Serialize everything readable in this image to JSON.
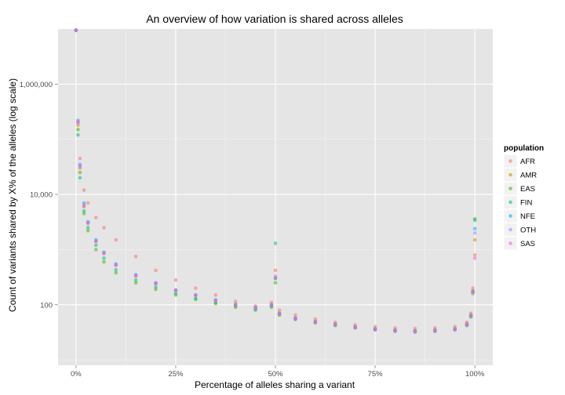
{
  "chart_data": {
    "type": "scatter",
    "title": "An overview of how variation is shared across alleles",
    "xlabel": "Percentage of alleles sharing a variant",
    "ylabel": "Count of variants shared by X% of the alleles (log scale)",
    "x_scale": "linear",
    "y_scale": "log10",
    "xlim": [
      -4.5,
      104.5
    ],
    "ylim": [
      8,
      10000000
    ],
    "x_ticks": [
      0,
      25,
      50,
      75,
      100
    ],
    "x_tick_labels": [
      "0%",
      "25%",
      "50%",
      "75%",
      "100%"
    ],
    "y_ticks": [
      100,
      10000,
      1000000
    ],
    "y_tick_labels": [
      "100",
      "10,000",
      "1,000,000"
    ],
    "grid": true,
    "legend": {
      "title": "population",
      "placement": "right"
    },
    "series": [
      {
        "name": "AFR",
        "color": "#F8766D",
        "x": [
          0,
          0.5,
          1,
          2,
          3,
          5,
          7,
          10,
          15,
          20,
          25,
          30,
          35,
          40,
          45,
          49,
          50,
          51,
          55,
          60,
          65,
          70,
          75,
          80,
          85,
          90,
          95,
          98,
          99,
          99.5,
          100
        ],
        "y": [
          9500000,
          200000,
          45000,
          12000,
          7000,
          3800,
          2500,
          1500,
          750,
          420,
          280,
          200,
          150,
          115,
          95,
          110,
          420,
          80,
          65,
          55,
          48,
          43,
          40,
          38,
          37,
          38,
          40,
          48,
          70,
          200,
          800
        ]
      },
      {
        "name": "AMR",
        "color": "#C49A00",
        "x": [
          0,
          0.5,
          1,
          2,
          3,
          5,
          7,
          10,
          15,
          20,
          25,
          30,
          35,
          40,
          45,
          49,
          50,
          51,
          55,
          60,
          65,
          70,
          75,
          80,
          85,
          90,
          95,
          98,
          99,
          99.5,
          100
        ],
        "y": [
          9500000,
          180000,
          30000,
          6000,
          3000,
          1400,
          850,
          520,
          330,
          240,
          180,
          150,
          120,
          100,
          88,
          100,
          300,
          70,
          58,
          50,
          45,
          40,
          37,
          35,
          34,
          35,
          37,
          45,
          65,
          180,
          1500
        ]
      },
      {
        "name": "EAS",
        "color": "#53B400",
        "x": [
          0,
          0.5,
          1,
          2,
          3,
          5,
          7,
          10,
          15,
          20,
          25,
          30,
          35,
          40,
          45,
          49,
          50,
          51,
          55,
          60,
          65,
          70,
          75,
          80,
          85,
          90,
          95,
          98,
          99,
          99.5,
          100
        ],
        "y": [
          9500000,
          150000,
          25000,
          4500,
          2200,
          1000,
          600,
          380,
          250,
          190,
          150,
          125,
          105,
          90,
          80,
          90,
          250,
          65,
          54,
          47,
          42,
          38,
          35,
          33,
          32,
          33,
          35,
          42,
          60,
          160,
          3600
        ]
      },
      {
        "name": "FIN",
        "color": "#00C094",
        "x": [
          0,
          0.5,
          1,
          2,
          3,
          5,
          7,
          10,
          15,
          20,
          25,
          30,
          35,
          40,
          45,
          49,
          50,
          51,
          55,
          60,
          65,
          70,
          75,
          80,
          85,
          90,
          95,
          98,
          99,
          99.5,
          100
        ],
        "y": [
          9500000,
          120000,
          20000,
          5000,
          2500,
          1200,
          700,
          430,
          280,
          210,
          160,
          130,
          110,
          95,
          83,
          95,
          1300,
          68,
          56,
          48,
          43,
          39,
          36,
          34,
          33,
          34,
          36,
          43,
          62,
          170,
          3400
        ]
      },
      {
        "name": "NFE",
        "color": "#00B6EB",
        "x": [
          0,
          0.5,
          1,
          2,
          3,
          5,
          7,
          10,
          15,
          20,
          25,
          30,
          35,
          40,
          45,
          49,
          50,
          51,
          55,
          60,
          65,
          70,
          75,
          80,
          85,
          90,
          95,
          98,
          99,
          99.5,
          100
        ],
        "y": [
          9500000,
          220000,
          35000,
          7000,
          3200,
          1500,
          900,
          550,
          350,
          250,
          185,
          150,
          122,
          102,
          89,
          100,
          300,
          70,
          57,
          49,
          44,
          39,
          36,
          34,
          33,
          34,
          36,
          44,
          64,
          175,
          2400
        ]
      },
      {
        "name": "OTH",
        "color": "#A58AFF",
        "x": [
          0,
          0.5,
          1,
          2,
          3,
          5,
          7,
          10,
          15,
          20,
          25,
          30,
          35,
          40,
          45,
          49,
          50,
          51,
          55,
          60,
          65,
          70,
          75,
          80,
          85,
          90,
          95,
          98,
          99,
          99.5,
          100
        ],
        "y": [
          9500000,
          200000,
          32000,
          6500,
          3100,
          1450,
          870,
          530,
          340,
          245,
          182,
          148,
          120,
          100,
          88,
          100,
          310,
          69,
          56,
          48,
          43,
          38,
          35,
          33,
          32,
          33,
          35,
          43,
          63,
          170,
          2000
        ]
      },
      {
        "name": "SAS",
        "color": "#FB61D7",
        "x": [
          0,
          0.5,
          1,
          2,
          3,
          5,
          7,
          10,
          15,
          20,
          25,
          30,
          35,
          40,
          45,
          49,
          50,
          51,
          55,
          60,
          65,
          70,
          75,
          80,
          85,
          90,
          95,
          98,
          99,
          99.5,
          100
        ],
        "y": [
          9500000,
          210000,
          33000,
          6200,
          3000,
          1400,
          850,
          520,
          335,
          243,
          182,
          148,
          120,
          100,
          88,
          100,
          330,
          70,
          57,
          49,
          44,
          39,
          36,
          34,
          33,
          34,
          36,
          44,
          64,
          172,
          700
        ]
      }
    ]
  }
}
